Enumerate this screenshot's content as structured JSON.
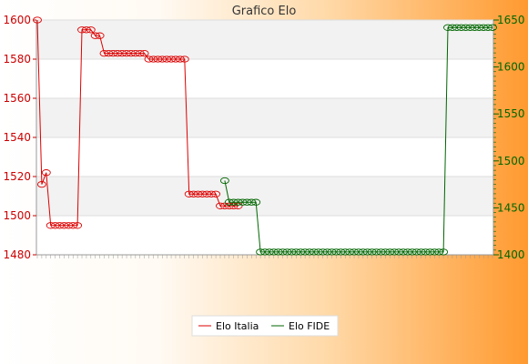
{
  "chart_data": {
    "type": "line",
    "title": "Grafico Elo",
    "xlabel": "",
    "ylabel": "",
    "legend_position": "bottom",
    "grid": true,
    "y_left": {
      "range": [
        1480,
        1600
      ],
      "ticks": [
        1480,
        1500,
        1520,
        1540,
        1560,
        1580,
        1600
      ],
      "color": "#cc0000"
    },
    "y_right": {
      "range": [
        1400,
        1650
      ],
      "ticks": [
        1400,
        1450,
        1500,
        1550,
        1600,
        1650
      ],
      "color": "#006600"
    },
    "point_count": 103,
    "series": [
      {
        "name": "Elo Italia",
        "axis": "left",
        "color": "#dd0000",
        "start_index": 0,
        "values": [
          1600,
          1516,
          1522,
          1495,
          1495,
          1495,
          1495,
          1495,
          1495,
          1495,
          1595,
          1595,
          1595,
          1592,
          1592,
          1583,
          1583,
          1583,
          1583,
          1583,
          1583,
          1583,
          1583,
          1583,
          1583,
          1580,
          1580,
          1580,
          1580,
          1580,
          1580,
          1580,
          1580,
          1580,
          1511,
          1511,
          1511,
          1511,
          1511,
          1511,
          1511,
          1505,
          1505,
          1505,
          1505,
          1505
        ]
      },
      {
        "name": "Elo FIDE",
        "axis": "right",
        "color": "#006600",
        "start_index": 42,
        "values": [
          1479,
          1456,
          1456,
          1456,
          1456,
          1456,
          1456,
          1456,
          1403,
          1403,
          1403,
          1403,
          1403,
          1403,
          1403,
          1403,
          1403,
          1403,
          1403,
          1403,
          1403,
          1403,
          1403,
          1403,
          1403,
          1403,
          1403,
          1403,
          1403,
          1403,
          1403,
          1403,
          1403,
          1403,
          1403,
          1403,
          1403,
          1403,
          1403,
          1403,
          1403,
          1403,
          1403,
          1403,
          1403,
          1403,
          1403,
          1403,
          1403,
          1403,
          1642,
          1642,
          1642,
          1642,
          1642,
          1642,
          1642,
          1642,
          1642,
          1642,
          1642
        ]
      }
    ]
  }
}
